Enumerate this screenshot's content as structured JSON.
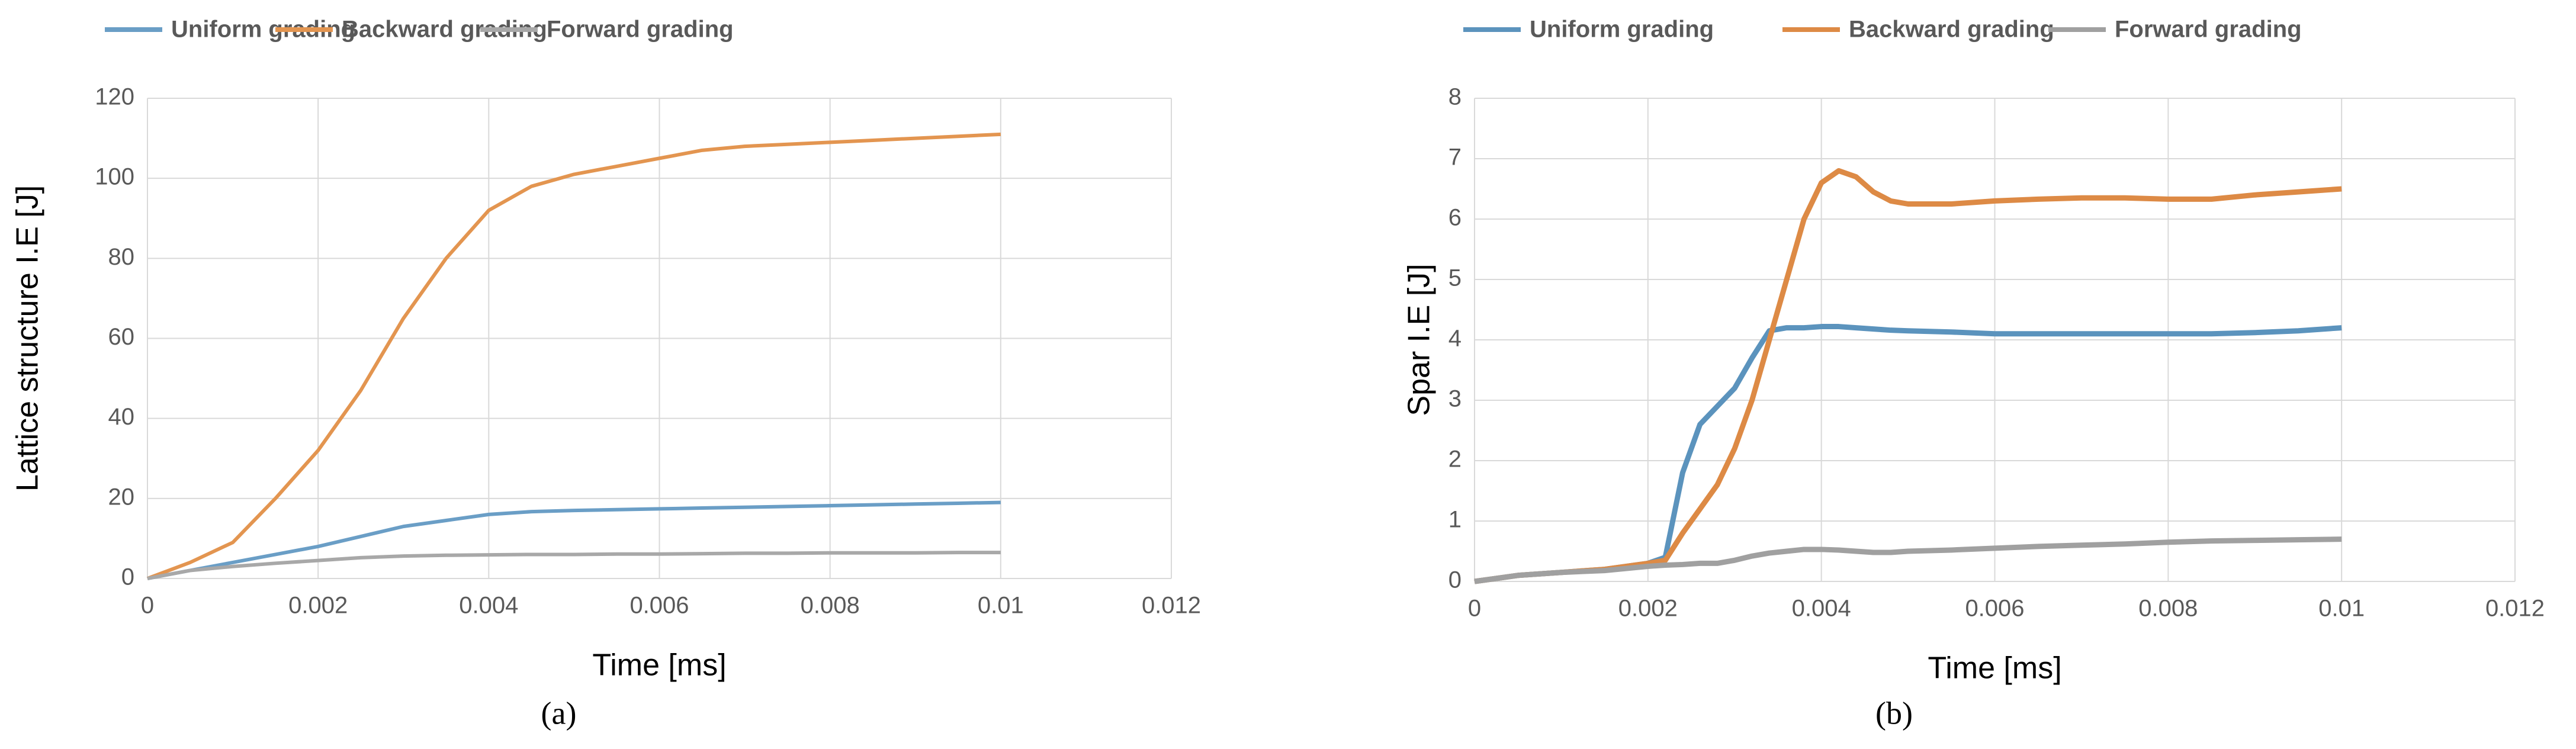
{
  "chart_data": [
    {
      "type": "line",
      "caption": "(a)",
      "x_label": "Time [ms]",
      "y_label": "Lattice structure I.E [J]",
      "x": [
        0,
        0.0005,
        0.001,
        0.0015,
        0.002,
        0.0025,
        0.003,
        0.0035,
        0.004,
        0.0045,
        0.005,
        0.0055,
        0.006,
        0.0065,
        0.007,
        0.0075,
        0.008,
        0.0085,
        0.009,
        0.0095,
        0.01
      ],
      "series": [
        {
          "name": "Uniform grading",
          "color": "#6a9ec6",
          "values": [
            0,
            2,
            4,
            6,
            8,
            10.5,
            13,
            14.5,
            16,
            16.7,
            17,
            17.2,
            17.4,
            17.6,
            17.8,
            18,
            18.2,
            18.4,
            18.6,
            18.8,
            19
          ]
        },
        {
          "name": "Backward grading",
          "color": "#e39550",
          "values": [
            0,
            4,
            9,
            20,
            32,
            47,
            65,
            80,
            92,
            98,
            101,
            103,
            105,
            107,
            108,
            108.5,
            109,
            109.5,
            110,
            110.5,
            111
          ]
        },
        {
          "name": "Forward grading",
          "color": "#a8a8a8",
          "values": [
            0,
            2,
            3,
            3.8,
            4.5,
            5.2,
            5.6,
            5.8,
            5.9,
            6,
            6,
            6.1,
            6.1,
            6.2,
            6.3,
            6.3,
            6.4,
            6.4,
            6.4,
            6.5,
            6.5
          ]
        }
      ],
      "xlim": [
        0,
        0.012
      ],
      "xticks": [
        0,
        0.002,
        0.004,
        0.006,
        0.008,
        0.01,
        0.012
      ],
      "ylim": [
        0,
        120
      ],
      "yticks": [
        0,
        20,
        40,
        60,
        80,
        100,
        120
      ],
      "grid": true
    },
    {
      "type": "line",
      "caption": "(b)",
      "x_label": "Time [ms]",
      "y_label": "Spar  I.E [J]",
      "x": [
        0,
        0.0005,
        0.001,
        0.0015,
        0.002,
        0.0022,
        0.0024,
        0.0026,
        0.0028,
        0.003,
        0.0032,
        0.0034,
        0.0036,
        0.0038,
        0.004,
        0.0042,
        0.0044,
        0.0046,
        0.0048,
        0.005,
        0.0055,
        0.006,
        0.0065,
        0.007,
        0.0075,
        0.008,
        0.0085,
        0.009,
        0.0095,
        0.01
      ],
      "series": [
        {
          "name": "Uniform grading",
          "color": "#5b93bd",
          "values": [
            0,
            0.1,
            0.15,
            0.2,
            0.3,
            0.4,
            1.8,
            2.6,
            2.9,
            3.2,
            3.7,
            4.15,
            4.2,
            4.2,
            4.22,
            4.22,
            4.2,
            4.18,
            4.16,
            4.15,
            4.13,
            4.1,
            4.1,
            4.1,
            4.1,
            4.1,
            4.1,
            4.12,
            4.15,
            4.2
          ]
        },
        {
          "name": "Backward grading",
          "color": "#dd8a45",
          "values": [
            0,
            0.1,
            0.15,
            0.2,
            0.3,
            0.35,
            0.8,
            1.2,
            1.6,
            2.2,
            3,
            4,
            5,
            6,
            6.6,
            6.8,
            6.7,
            6.45,
            6.3,
            6.25,
            6.25,
            6.3,
            6.33,
            6.35,
            6.35,
            6.33,
            6.33,
            6.4,
            6.45,
            6.5
          ]
        },
        {
          "name": "Forward grading",
          "color": "#a0a0a0",
          "values": [
            0,
            0.1,
            0.15,
            0.18,
            0.25,
            0.27,
            0.28,
            0.3,
            0.3,
            0.35,
            0.42,
            0.47,
            0.5,
            0.53,
            0.53,
            0.52,
            0.5,
            0.48,
            0.48,
            0.5,
            0.52,
            0.55,
            0.58,
            0.6,
            0.62,
            0.65,
            0.67,
            0.68,
            0.69,
            0.7
          ]
        }
      ],
      "xlim": [
        0,
        0.012
      ],
      "xticks": [
        0,
        0.002,
        0.004,
        0.006,
        0.008,
        0.01,
        0.012
      ],
      "ylim": [
        0,
        8
      ],
      "yticks": [
        0,
        1,
        2,
        3,
        4,
        5,
        6,
        7,
        8
      ],
      "grid": true
    }
  ]
}
